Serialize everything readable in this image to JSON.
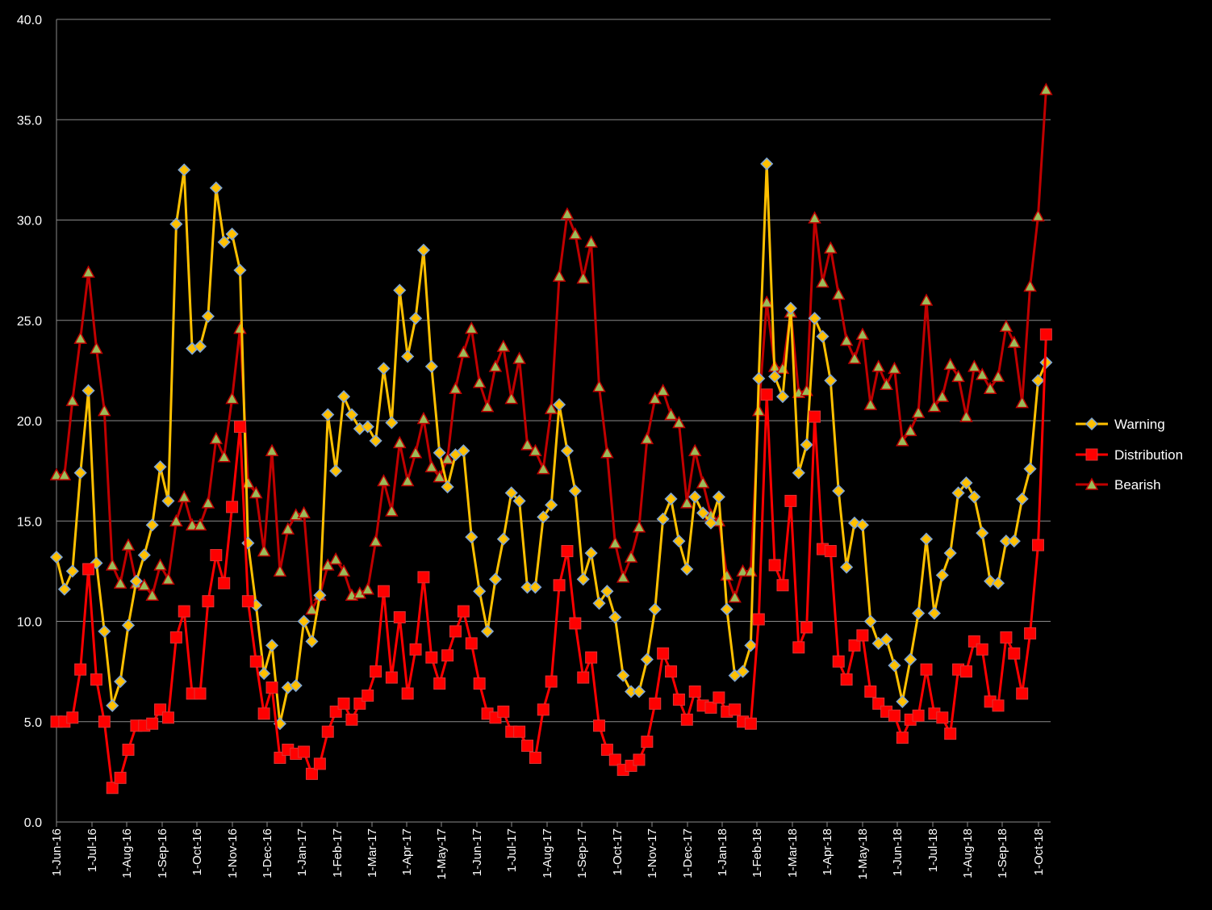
{
  "chart_data": {
    "type": "line",
    "title": "",
    "xlabel": "",
    "ylabel": "",
    "ylim": [
      0,
      40
    ],
    "y_ticks": [
      "0.0",
      "5.0",
      "10.0",
      "15.0",
      "20.0",
      "25.0",
      "30.0",
      "35.0",
      "40.0"
    ],
    "grid": "horizontal",
    "legend_position": "right",
    "background_color": "#000000",
    "x_tick_labels": [
      "1-Jun-16",
      "1-Jul-16",
      "1-Aug-16",
      "1-Sep-16",
      "1-Oct-16",
      "1-Nov-16",
      "1-Dec-16",
      "1-Jan-17",
      "1-Feb-17",
      "1-Mar-17",
      "1-Apr-17",
      "1-May-17",
      "1-Jun-17",
      "1-Jul-17",
      "1-Aug-17",
      "1-Sep-17",
      "1-Oct-17",
      "1-Nov-17",
      "1-Dec-17",
      "1-Jan-18",
      "1-Feb-18",
      "1-Mar-18",
      "1-Apr-18",
      "1-May-18",
      "1-Jun-18",
      "1-Jul-18",
      "1-Aug-18",
      "1-Sep-18",
      "1-Oct-18"
    ],
    "series": [
      {
        "name": "Warning",
        "color": "#FFC000",
        "marker": "diamond",
        "values": [
          13.2,
          11.6,
          12.5,
          17.4,
          21.5,
          12.9,
          9.5,
          5.8,
          7.0,
          9.8,
          12.0,
          13.3,
          14.8,
          17.7,
          16.0,
          29.8,
          32.5,
          23.6,
          23.7,
          25.2,
          31.6,
          28.9,
          29.3,
          27.5,
          13.9,
          10.8,
          7.4,
          8.8,
          4.9,
          6.7,
          6.8,
          10.0,
          9.0,
          11.3,
          20.3,
          17.5,
          21.2,
          20.3,
          19.6,
          19.7,
          19.0,
          22.6,
          19.9,
          26.5,
          23.2,
          25.1,
          28.5,
          22.7,
          18.4,
          16.7,
          18.3,
          18.5,
          14.2,
          11.5,
          9.5,
          12.1,
          14.1,
          16.4,
          16.0,
          11.7,
          11.7,
          15.2,
          15.8,
          20.8,
          18.5,
          16.5,
          12.1,
          13.4,
          10.9,
          11.5,
          10.2,
          7.3,
          6.5,
          6.5,
          8.1,
          10.6,
          15.1,
          16.1,
          14.0,
          12.6,
          16.2,
          15.4,
          14.9,
          16.2,
          10.6,
          7.3,
          7.5,
          8.8,
          22.1,
          32.8,
          22.2,
          21.2,
          25.6,
          17.4,
          18.8,
          25.1,
          24.2,
          22.0,
          16.5,
          12.7,
          14.9,
          14.8,
          10.0,
          8.9,
          9.1,
          7.8,
          6.0,
          8.1,
          10.4,
          14.1,
          10.4,
          12.3,
          13.4,
          16.4,
          16.9,
          16.2,
          14.4,
          12.0,
          11.9,
          14.0,
          14.0,
          16.1,
          17.6,
          22.0,
          22.9
        ]
      },
      {
        "name": "Distribution",
        "color": "#FF0000",
        "marker": "square",
        "values": [
          5.0,
          5.0,
          5.2,
          7.6,
          12.6,
          7.1,
          5.0,
          1.7,
          2.2,
          3.6,
          4.8,
          4.8,
          4.9,
          5.6,
          5.2,
          9.2,
          10.5,
          6.4,
          6.4,
          11.0,
          13.3,
          11.9,
          15.7,
          19.7,
          11.0,
          8.0,
          5.4,
          6.7,
          3.2,
          3.6,
          3.4,
          3.5,
          2.4,
          2.9,
          4.5,
          5.5,
          5.9,
          5.1,
          5.9,
          6.3,
          7.5,
          11.5,
          7.2,
          10.2,
          6.4,
          8.6,
          12.2,
          8.2,
          6.9,
          8.3,
          9.5,
          10.5,
          8.9,
          6.9,
          5.4,
          5.2,
          5.5,
          4.5,
          4.5,
          3.8,
          3.2,
          5.6,
          7.0,
          11.8,
          13.5,
          9.9,
          7.2,
          8.2,
          4.8,
          3.6,
          3.1,
          2.6,
          2.8,
          3.1,
          4.0,
          5.9,
          8.4,
          7.5,
          6.1,
          5.1,
          6.5,
          5.8,
          5.7,
          6.2,
          5.5,
          5.6,
          5.0,
          4.9,
          10.1,
          21.3,
          12.8,
          11.8,
          16.0,
          8.7,
          9.7,
          20.2,
          13.6,
          13.5,
          8.0,
          7.1,
          8.8,
          9.3,
          6.5,
          5.9,
          5.5,
          5.3,
          4.2,
          5.1,
          5.3,
          7.6,
          5.4,
          5.2,
          4.4,
          7.6,
          7.5,
          9.0,
          8.6,
          6.0,
          5.8,
          9.2,
          8.4,
          6.4,
          9.4,
          13.8,
          24.3
        ]
      },
      {
        "name": "Bearish",
        "color": "#C00000",
        "marker": "triangle",
        "values": [
          17.3,
          17.3,
          21.0,
          24.1,
          27.4,
          23.6,
          20.5,
          12.8,
          11.9,
          13.8,
          11.9,
          11.8,
          11.3,
          12.8,
          12.1,
          15.0,
          16.2,
          14.8,
          14.8,
          15.9,
          19.1,
          18.2,
          21.1,
          24.6,
          16.9,
          16.4,
          13.5,
          18.5,
          12.5,
          14.6,
          15.3,
          15.4,
          10.6,
          11.3,
          12.8,
          13.1,
          12.5,
          11.3,
          11.4,
          11.6,
          14.0,
          17.0,
          15.5,
          18.9,
          17.0,
          18.4,
          20.1,
          17.7,
          17.2,
          18.1,
          21.6,
          23.4,
          24.6,
          21.9,
          20.7,
          22.7,
          23.7,
          21.1,
          23.1,
          18.8,
          18.5,
          17.6,
          20.6,
          27.2,
          30.3,
          29.3,
          27.1,
          28.9,
          21.7,
          18.4,
          13.9,
          12.2,
          13.2,
          14.7,
          19.1,
          21.1,
          21.5,
          20.3,
          19.9,
          15.9,
          18.5,
          16.9,
          15.3,
          15.0,
          12.3,
          11.2,
          12.5,
          12.5,
          20.5,
          25.9,
          22.7,
          22.6,
          25.4,
          21.4,
          21.5,
          30.1,
          26.9,
          28.6,
          26.3,
          24.0,
          23.1,
          24.3,
          20.8,
          22.7,
          21.8,
          22.6,
          19.0,
          19.5,
          20.4,
          26.0,
          20.7,
          21.2,
          22.8,
          22.2,
          20.2,
          22.7,
          22.3,
          21.6,
          22.2,
          24.7,
          23.9,
          20.9,
          26.7,
          30.2,
          36.5
        ]
      }
    ]
  }
}
